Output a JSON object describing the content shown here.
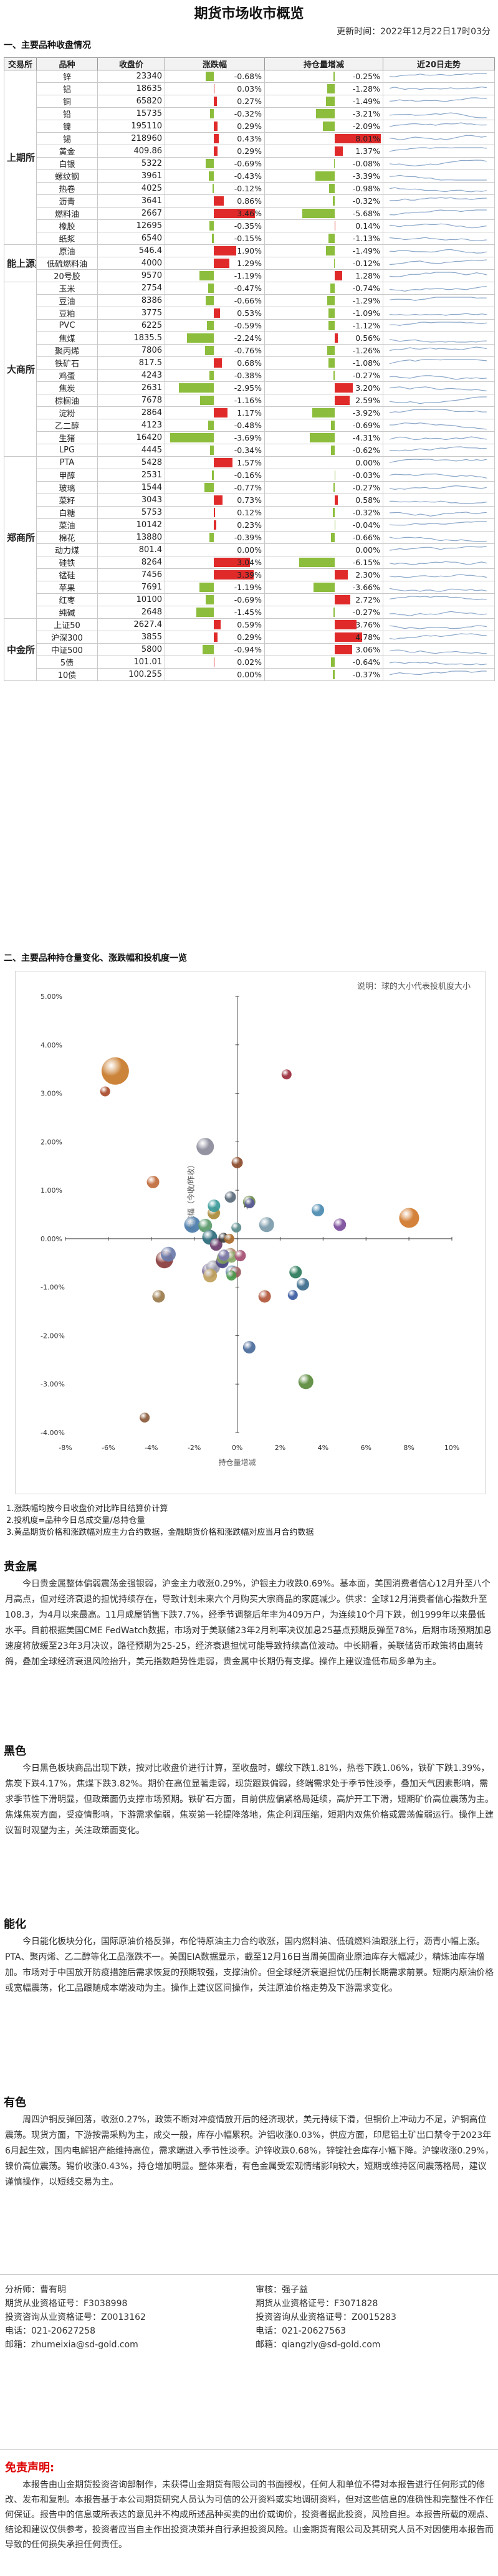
{
  "title": "期货市场收市概览",
  "update_time": "更新时间：2022年12月22日17时03分",
  "section1": "一、主要品种收盘情况",
  "headers": [
    "交易所",
    "品种",
    "收盘价",
    "涨跌幅",
    "持仓量增减",
    "近20日走势"
  ],
  "exchanges": [
    {
      "name": "上期所",
      "rows": [
        {
          "name": "锌",
          "close": "23340",
          "chg": -0.68,
          "chg_text": "-0.68%",
          "oi": -0.25,
          "oi_text": "-0.25%"
        },
        {
          "name": "铝",
          "close": "18635",
          "chg": 0.03,
          "chg_text": "0.03%",
          "oi": -1.28,
          "oi_text": "-1.28%"
        },
        {
          "name": "铜",
          "close": "65820",
          "chg": 0.27,
          "chg_text": "0.27%",
          "oi": -1.49,
          "oi_text": "-1.49%"
        },
        {
          "name": "铅",
          "close": "15735",
          "chg": -0.32,
          "chg_text": "-0.32%",
          "oi": -3.21,
          "oi_text": "-3.21%"
        },
        {
          "name": "镍",
          "close": "195110",
          "chg": 0.29,
          "chg_text": "0.29%",
          "oi": -2.09,
          "oi_text": "-2.09%"
        },
        {
          "name": "锡",
          "close": "218960",
          "chg": 0.43,
          "chg_text": "0.43%",
          "oi": 8.01,
          "oi_text": "8.01%"
        },
        {
          "name": "黄金",
          "close": "409.86",
          "chg": 0.29,
          "chg_text": "0.29%",
          "oi": 1.37,
          "oi_text": "1.37%"
        },
        {
          "name": "白银",
          "close": "5322",
          "chg": -0.69,
          "chg_text": "-0.69%",
          "oi": -0.08,
          "oi_text": "-0.08%"
        },
        {
          "name": "螺纹钢",
          "close": "3961",
          "chg": -0.43,
          "chg_text": "-0.43%",
          "oi": -3.39,
          "oi_text": "-3.39%"
        },
        {
          "name": "热卷",
          "close": "4025",
          "chg": -0.12,
          "chg_text": "-0.12%",
          "oi": -0.98,
          "oi_text": "-0.98%"
        },
        {
          "name": "沥青",
          "close": "3641",
          "chg": 0.86,
          "chg_text": "0.86%",
          "oi": -0.32,
          "oi_text": "-0.32%"
        },
        {
          "name": "燃料油",
          "close": "2667",
          "chg": 3.46,
          "chg_text": "3.46%",
          "oi": -5.68,
          "oi_text": "-5.68%"
        },
        {
          "name": "橡胶",
          "close": "12695",
          "chg": -0.35,
          "chg_text": "-0.35%",
          "oi": 0.14,
          "oi_text": "0.14%"
        },
        {
          "name": "纸浆",
          "close": "6540",
          "chg": -0.15,
          "chg_text": "-0.15%",
          "oi": -1.13,
          "oi_text": "-1.13%"
        }
      ]
    },
    {
      "name": "能上源期",
      "rows": [
        {
          "name": "原油",
          "close": "546.4",
          "chg": 1.9,
          "chg_text": "1.90%",
          "oi": -1.49,
          "oi_text": "-1.49%"
        },
        {
          "name": "低硫燃料油",
          "close": "4000",
          "chg": 1.29,
          "chg_text": "1.29%",
          "oi": -0.12,
          "oi_text": "-0.12%"
        },
        {
          "name": "20号胶",
          "close": "9570",
          "chg": -1.19,
          "chg_text": "-1.19%",
          "oi": 1.28,
          "oi_text": "1.28%"
        }
      ]
    },
    {
      "name": "大商所",
      "rows": [
        {
          "name": "玉米",
          "close": "2754",
          "chg": -0.47,
          "chg_text": "-0.47%",
          "oi": -0.74,
          "oi_text": "-0.74%"
        },
        {
          "name": "豆油",
          "close": "8386",
          "chg": -0.66,
          "chg_text": "-0.66%",
          "oi": -1.29,
          "oi_text": "-1.29%"
        },
        {
          "name": "豆粕",
          "close": "3775",
          "chg": 0.53,
          "chg_text": "0.53%",
          "oi": -1.09,
          "oi_text": "-1.09%"
        },
        {
          "name": "PVC",
          "close": "6225",
          "chg": -0.59,
          "chg_text": "-0.59%",
          "oi": -1.12,
          "oi_text": "-1.12%"
        },
        {
          "name": "焦煤",
          "close": "1835.5",
          "chg": -2.24,
          "chg_text": "-2.24%",
          "oi": 0.56,
          "oi_text": "0.56%"
        },
        {
          "name": "聚丙烯",
          "close": "7806",
          "chg": -0.76,
          "chg_text": "-0.76%",
          "oi": -1.26,
          "oi_text": "-1.26%"
        },
        {
          "name": "铁矿石",
          "close": "817.5",
          "chg": 0.68,
          "chg_text": "0.68%",
          "oi": -1.08,
          "oi_text": "-1.08%"
        },
        {
          "name": "鸡蛋",
          "close": "4243",
          "chg": -0.38,
          "chg_text": "-0.38%",
          "oi": -0.27,
          "oi_text": "-0.27%"
        },
        {
          "name": "焦炭",
          "close": "2631",
          "chg": -2.95,
          "chg_text": "-2.95%",
          "oi": 3.2,
          "oi_text": "3.20%"
        },
        {
          "name": "棕榈油",
          "close": "7678",
          "chg": -1.16,
          "chg_text": "-1.16%",
          "oi": 2.59,
          "oi_text": "2.59%"
        },
        {
          "name": "淀粉",
          "close": "2864",
          "chg": 1.17,
          "chg_text": "1.17%",
          "oi": -3.92,
          "oi_text": "-3.92%"
        },
        {
          "name": "乙二醇",
          "close": "4123",
          "chg": -0.48,
          "chg_text": "-0.48%",
          "oi": -0.69,
          "oi_text": "-0.69%"
        },
        {
          "name": "生猪",
          "close": "16420",
          "chg": -3.69,
          "chg_text": "-3.69%",
          "oi": -4.31,
          "oi_text": "-4.31%"
        },
        {
          "name": "LPG",
          "close": "4445",
          "chg": -0.34,
          "chg_text": "-0.34%",
          "oi": -0.62,
          "oi_text": "-0.62%"
        }
      ]
    },
    {
      "name": "郑商所",
      "rows": [
        {
          "name": "PTA",
          "close": "5428",
          "chg": 1.57,
          "chg_text": "1.57%",
          "oi": 0.0,
          "oi_text": "0.00%"
        },
        {
          "name": "甲醇",
          "close": "2531",
          "chg": -0.16,
          "chg_text": "-0.16%",
          "oi": -0.03,
          "oi_text": "-0.03%"
        },
        {
          "name": "玻璃",
          "close": "1544",
          "chg": -0.77,
          "chg_text": "-0.77%",
          "oi": -0.27,
          "oi_text": "-0.27%"
        },
        {
          "name": "菜籽",
          "close": "3043",
          "chg": 0.73,
          "chg_text": "0.73%",
          "oi": 0.58,
          "oi_text": "0.58%"
        },
        {
          "name": "白糖",
          "close": "5753",
          "chg": 0.12,
          "chg_text": "0.12%",
          "oi": -0.32,
          "oi_text": "-0.32%"
        },
        {
          "name": "菜油",
          "close": "10142",
          "chg": 0.23,
          "chg_text": "0.23%",
          "oi": -0.04,
          "oi_text": "-0.04%"
        },
        {
          "name": "棉花",
          "close": "13880",
          "chg": -0.39,
          "chg_text": "-0.39%",
          "oi": -0.66,
          "oi_text": "-0.66%"
        },
        {
          "name": "动力煤",
          "close": "801.4",
          "chg": 0.0,
          "chg_text": "0.00%",
          "oi": 0.0,
          "oi_text": "0.00%"
        },
        {
          "name": "硅铁",
          "close": "8264",
          "chg": 3.04,
          "chg_text": "3.04%",
          "oi": -6.15,
          "oi_text": "-6.15%"
        },
        {
          "name": "锰硅",
          "close": "7456",
          "chg": 3.39,
          "chg_text": "3.39%",
          "oi": 2.3,
          "oi_text": "2.30%"
        },
        {
          "name": "苹果",
          "close": "7691",
          "chg": -1.19,
          "chg_text": "-1.19%",
          "oi": -3.66,
          "oi_text": "-3.66%"
        },
        {
          "name": "红枣",
          "close": "10100",
          "chg": -0.69,
          "chg_text": "-0.69%",
          "oi": 2.72,
          "oi_text": "2.72%"
        },
        {
          "name": "纯碱",
          "close": "2648",
          "chg": -1.45,
          "chg_text": "-1.45%",
          "oi": -0.27,
          "oi_text": "-0.27%"
        }
      ]
    },
    {
      "name": "中金所",
      "rows": [
        {
          "name": "上证50",
          "close": "2627.4",
          "chg": 0.59,
          "chg_text": "0.59%",
          "oi": 3.76,
          "oi_text": "3.76%"
        },
        {
          "name": "沪深300",
          "close": "3855",
          "chg": 0.29,
          "chg_text": "0.29%",
          "oi": 4.78,
          "oi_text": "4.78%"
        },
        {
          "name": "中证500",
          "close": "5800",
          "chg": -0.94,
          "chg_text": "-0.94%",
          "oi": 3.06,
          "oi_text": "3.06%"
        },
        {
          "name": "5债",
          "close": "101.01",
          "chg": 0.02,
          "chg_text": "0.02%",
          "oi": -0.64,
          "oi_text": "-0.64%"
        },
        {
          "name": "10债",
          "close": "100.255",
          "chg": 0.0,
          "chg_text": "0.00%",
          "oi": -0.37,
          "oi_text": "-0.37%"
        }
      ]
    }
  ],
  "colors": {
    "up": "#e02a2a",
    "down": "#8cbd3c",
    "spark": "#8aa6c8",
    "grid": "#c8c8c8"
  },
  "section2": "二、主要品种持仓量变化、涨跌幅和投机度一览",
  "chart_data": {
    "type": "scatter",
    "note": "说明：球的大小代表投机度大小",
    "ylabel": "涨跌幅（今收/昨收）",
    "xlabel": "持仓量增减",
    "xlim": [
      -0.08,
      0.1
    ],
    "ylim": [
      -0.04,
      0.05
    ],
    "x_ticks": [
      "-8%",
      "-6%",
      "-4%",
      "-2%",
      "0%",
      "2%",
      "4%",
      "6%",
      "8%",
      "10%"
    ],
    "y_ticks": [
      "5.00%",
      "4.00%",
      "3.00%",
      "2.00%",
      "1.00%",
      "0.00%",
      "-1.00%",
      "-2.00%",
      "-3.00%",
      "-4.00%"
    ],
    "label_zhong": "中",
    "points": [
      {
        "x": -0.0568,
        "y": 0.0346,
        "r": 22,
        "c": "#c87a2a"
      },
      {
        "x": -0.0615,
        "y": 0.0304,
        "r": 8,
        "c": "#a84a2a"
      },
      {
        "x": 0.023,
        "y": 0.0339,
        "r": 8,
        "c": "#9a2a3a"
      },
      {
        "x": 0.0801,
        "y": 0.0043,
        "r": 16,
        "c": "#d0782a"
      },
      {
        "x": 0.0478,
        "y": 0.0029,
        "r": 10,
        "c": "#7a4a9a"
      },
      {
        "x": 0.0376,
        "y": 0.0059,
        "r": 10,
        "c": "#4a8ab0"
      },
      {
        "x": 0.0306,
        "y": -0.0094,
        "r": 10,
        "c": "#3a6a8a"
      },
      {
        "x": -0.0431,
        "y": -0.0369,
        "r": 8,
        "c": "#8a5a3a"
      },
      {
        "x": 0.032,
        "y": -0.0295,
        "r": 12,
        "c": "#5a8a3a"
      },
      {
        "x": 0.0259,
        "y": -0.0116,
        "r": 8,
        "c": "#3a5aa0"
      },
      {
        "x": 0.0056,
        "y": -0.0224,
        "r": 10,
        "c": "#4a6a9a"
      },
      {
        "x": 0.0272,
        "y": -0.0069,
        "r": 10,
        "c": "#2a7a5a"
      },
      {
        "x": -0.0366,
        "y": -0.0119,
        "r": 10,
        "c": "#9a7a4a"
      },
      {
        "x": -0.0149,
        "y": 0.019,
        "r": 14,
        "c": "#8a8a9a"
      },
      {
        "x": -0.0392,
        "y": 0.0117,
        "r": 10,
        "c": "#c06a3a"
      },
      {
        "x": 0.0128,
        "y": -0.0119,
        "r": 10,
        "c": "#b0563a"
      },
      {
        "x": 0.0056,
        "y": 0.0076,
        "r": 10,
        "c": "#6a8a4a"
      },
      {
        "x": 0.0137,
        "y": 0.0029,
        "r": 12,
        "c": "#7a9aaa"
      },
      {
        "x": 0.0014,
        "y": -0.0035,
        "r": 9,
        "c": "#aa5a7a"
      },
      {
        "x": -0.0339,
        "y": -0.0043,
        "r": 14,
        "c": "#8a3a3a"
      },
      {
        "x": -0.0321,
        "y": -0.0032,
        "r": 12,
        "c": "#6a7aaa"
      },
      {
        "x": -0.0209,
        "y": 0.0029,
        "r": 13,
        "c": "#4a7aaa"
      },
      {
        "x": -0.0149,
        "y": 0.0027,
        "r": 11,
        "c": "#5a9a6a"
      },
      {
        "x": -0.0128,
        "y": 0.0003,
        "r": 12,
        "c": "#2a6a7a"
      },
      {
        "x": -0.0109,
        "y": 0.0053,
        "r": 10,
        "c": "#aa8a3a"
      },
      {
        "x": -0.0129,
        "y": -0.0066,
        "r": 12,
        "c": "#7a6a9a"
      },
      {
        "x": -0.0112,
        "y": -0.0059,
        "r": 11,
        "c": "#9a9aaa"
      },
      {
        "x": -0.0108,
        "y": 0.0068,
        "r": 10,
        "c": "#3a9a9a"
      },
      {
        "x": -0.0126,
        "y": -0.0076,
        "r": 11,
        "c": "#c0a05a"
      },
      {
        "x": -0.0098,
        "y": -0.0012,
        "r": 10,
        "c": "#6a3a6a"
      },
      {
        "x": -0.0074,
        "y": -0.0047,
        "r": 9,
        "c": "#9a6a4a"
      },
      {
        "x": -0.0069,
        "y": -0.0048,
        "r": 10,
        "c": "#4a4a8a"
      },
      {
        "x": -0.0066,
        "y": -0.0039,
        "r": 10,
        "c": "#7a9a5a"
      },
      {
        "x": -0.0062,
        "y": -0.0034,
        "r": 9,
        "c": "#aa7a9a"
      },
      {
        "x": -0.0032,
        "y": 0.0086,
        "r": 9,
        "c": "#5a6a7a"
      },
      {
        "x": -0.0032,
        "y": -0.0032,
        "r": 10,
        "c": "#b08a6a"
      },
      {
        "x": -0.0025,
        "y": -0.0068,
        "r": 10,
        "c": "#6a8aaa"
      },
      {
        "x": -0.0027,
        "y": -0.0038,
        "r": 9,
        "c": "#8aaa6a"
      },
      {
        "x": -0.0008,
        "y": -0.0069,
        "r": 9,
        "c": "#9a5a5a"
      },
      {
        "x": -0.0004,
        "y": 0.0023,
        "r": 8,
        "c": "#5a8a8a"
      },
      {
        "x": 0.0,
        "y": 0.0157,
        "r": 9,
        "c": "#8a4a2a"
      },
      {
        "x": 0.0014,
        "y": -0.0035,
        "r": 9,
        "c": "#aa5a7a"
      },
      {
        "x": -0.0062,
        "y": -0.0034,
        "r": 9,
        "c": "#7a7aaa"
      },
      {
        "x": -0.0064,
        "y": 0.0002,
        "r": 8,
        "c": "#3a3a3a"
      },
      {
        "x": -0.0037,
        "y": 0.0,
        "r": 8,
        "c": "#aa6a2a"
      },
      {
        "x": 0.0058,
        "y": 0.0073,
        "r": 8,
        "c": "#5a5a9a"
      },
      {
        "x": -0.0027,
        "y": -0.0076,
        "r": 8,
        "c": "#4a9a4a"
      }
    ]
  },
  "notes": [
    "1.涨跌幅均按今日收盘价对比昨日结算价计算",
    "2.投机度=品种今日总成交量/总持仓量",
    "3.黄品期货价格和涨跌幅对应主力合约数据，金融期货价格和涨跌幅对应当月合约数据"
  ],
  "sections": [
    {
      "title": "贵金属",
      "paragraph": "今日贵金属整体偏弱震荡金强银弱，沪金主力收涨0.29%，沪银主力收跌0.69%。基本面，美国消费者信心12月升至八个月高点，但对经济衰退的担忧持续存在，导致计划未来六个月购买大宗商品的家庭减少。供求：全球12月消费者信心指数升至108.3，为4月以来最高。11月成屋销售下跌7.7%，经季节调整后年率为409万户，为连续10个月下跌，创1999年以来最低水平。目前根据美国CME FedWatch数据，市场对于美联储23年2月利率决议加息25基点预期反弹至78%，后期市场预期加息速度将放缓至23年3月决议，路径预期为25-25，经济衰退担忧可能导致持续高位波动。中长期看，美联储货币政策将由鹰转鸽，叠加全球经济衰退风险抬升，美元指数趋势性走弱，贵金属中长期仍有支撑。操作上建议逢低布局多单为主。"
    },
    {
      "title": "黑色",
      "paragraph": "今日黑色板块商品出现下跌，按对比收盘价进行计算，至收盘时，螺纹下跌1.81%，热卷下跌1.06%，铁矿下跌1.39%，焦炭下跌4.17%，焦煤下跌3.82%。期价在高位显著走弱，现货跟跌偏弱，终端需求处于季节性淡季，叠加天气因素影响，需求季节性下滑明显，但政策面仍支撑市场预期。铁矿石方面，目前供应偏紧格局延续，高炉开工下滑，短期矿价高位震荡为主。焦煤焦炭方面，受疫情影响，下游需求偏弱，焦炭第一轮提降落地，焦企利润压缩，短期内双焦价格或震荡偏弱运行。操作上建议暂时观望为主，关注政策面变化。"
    },
    {
      "title": "能化",
      "paragraph": "今日能化板块分化，国际原油价格反弹，布伦特原油主力合约收涨，国内燃料油、低硫燃料油跟涨上行，沥青小幅上涨。PTA、聚丙烯、乙二醇等化工品涨跌不一。美国EIA数据显示，截至12月16日当周美国商业原油库存大幅减少，精炼油库存增加。市场对于中国放开防疫措施后需求恢复的预期较强，支撑油价。但全球经济衰退担忧仍压制长期需求前景。短期内原油价格或宽幅震荡，化工品跟随成本端波动为主。操作上建议区间操作，关注原油价格走势及下游需求变化。"
    },
    {
      "title": "有色",
      "paragraph": "周四沪铜反弹回落，收涨0.27%，政策不断对冲疫情放开后的经济现状，美元持续下滑，但铜价上冲动力不足，沪铜高位震荡。现货方面，下游按需采购为主，成交一般，库存小幅累积。沪铝收涨0.03%，供应方面，印尼铝土矿出口禁令于2023年6月起生效，国内电解铝产能维持高位，需求端进入季节性淡季。沪锌收跌0.68%，锌锭社会库存小幅下降。沪镍收涨0.29%，镍价高位震荡。锡价收涨0.43%，持仓增加明显。整体来看，有色金属受宏观情绪影响较大，短期或维持区间震荡格局，建议谨慎操作，以短线交易为主。"
    }
  ],
  "footer": {
    "left": [
      "分析师：曹有明",
      "期货从业资格证号：F3038998",
      "投资咨询从业资格证号：Z0013162",
      "电话：021-20627258",
      "邮箱：zhumeixia@sd-gold.com"
    ],
    "right": [
      "审核：强子益",
      "期货从业资格证号：F3071828",
      "投资咨询从业资格证号：Z0015283",
      "电话：021-20627563",
      "邮箱：qiangzly@sd-gold.com"
    ]
  },
  "disclaimer_title": "免责声明:",
  "disclaimer": "本报告由山金期货投资咨询部制作，未获得山金期货有限公司的书面授权，任何人和单位不得对本报告进行任何形式的修改、发布和复制。本报告基于本公司期货研究人员认为可信的公开资料或实地调研资料，但对这些信息的准确性和完整性不作任何保证。报告中的信息或所表达的意见并不构成所述品种买卖的出价或询价，投资者据此投资，风险自担。本报告所载的观点、结论和建议仅供参考，投资者应当自主作出投资决策并自行承担投资风险。山金期货有限公司及其研究人员不对因使用本报告而导致的任何损失承担任何责任。"
}
